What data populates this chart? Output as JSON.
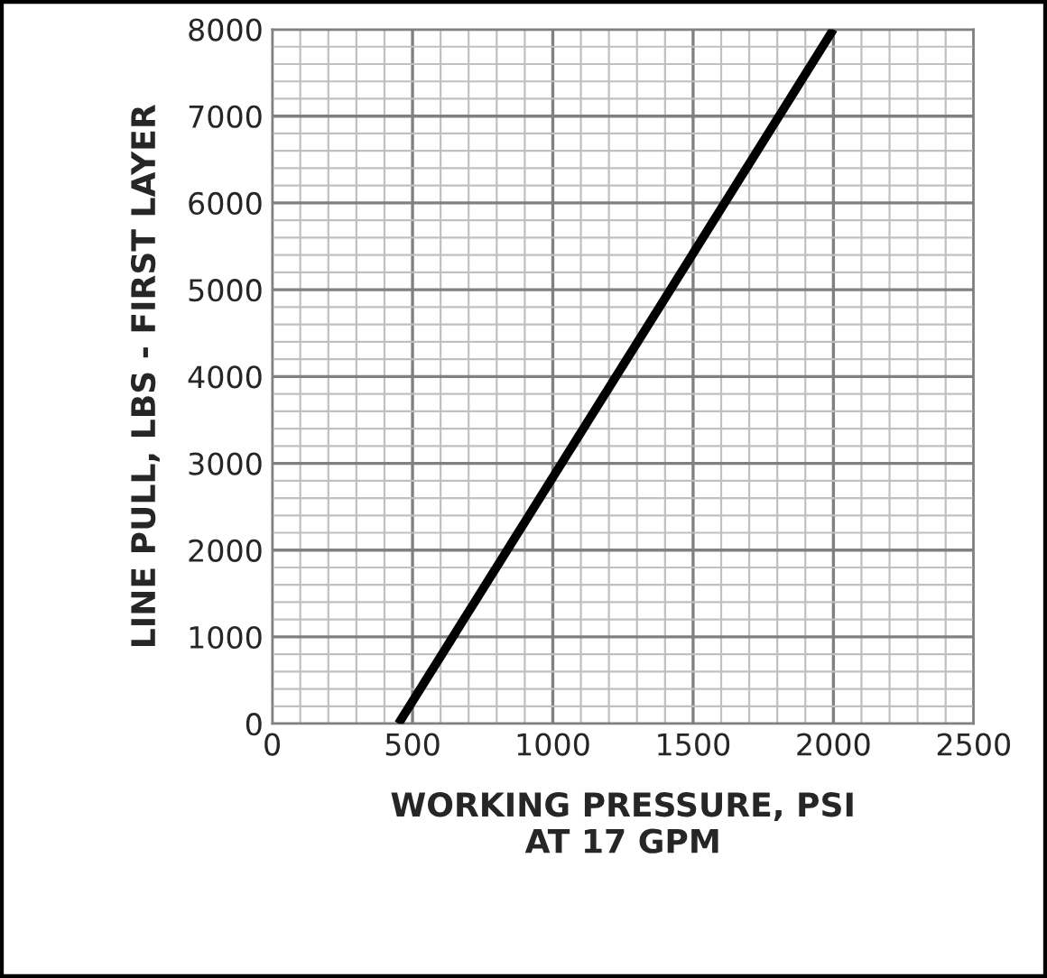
{
  "chart_data": {
    "type": "line",
    "xlabel": "WORKING PRESSURE, PSI\nAT 17 GPM",
    "ylabel": "LINE PULL, LBS - FIRST LAYER",
    "series": [
      {
        "color": "#000000",
        "x": [
          450,
          2000
        ],
        "values": [
          0,
          8000
        ]
      }
    ],
    "xlim": [
      0,
      2500
    ],
    "ylim": [
      0,
      8000
    ],
    "xticks": [
      0,
      500,
      1000,
      1500,
      2000,
      2500
    ],
    "yticks": [
      0,
      1000,
      2000,
      3000,
      4000,
      5000,
      6000,
      7000,
      8000
    ],
    "grid": true,
    "marker": "none",
    "line_style": "solid"
  }
}
